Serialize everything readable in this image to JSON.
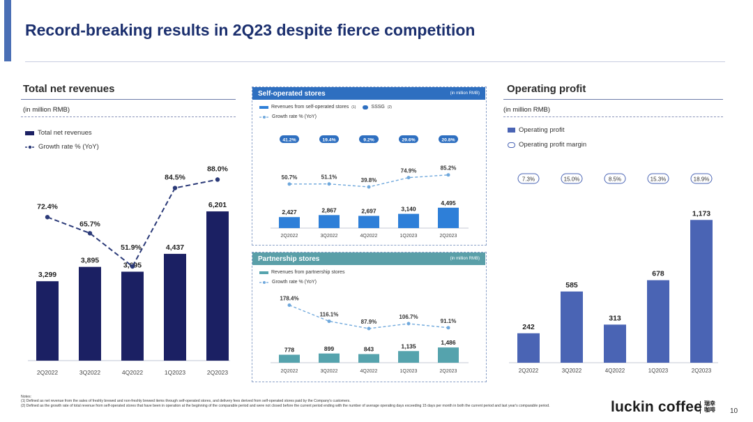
{
  "slide": {
    "title": "Record-breaking results in 2Q23 despite fierce competition",
    "page_number": "10",
    "logo_text": "luckin coffee",
    "logo_cn": "瑞幸咖啡",
    "notes_label": "Notes:",
    "notes": [
      "(1) Defined as net revenue from the sales of freshly brewed and non-freshly brewed items through self-operated stores, and delivery fees derived from self-operated stores paid by the Company's customers.",
      "(2) Defined as the growth rate of total revenue from self-operated stores that have been in operation at the beginning of the comparable period and were not closed before the current period ending with the number of average operating days exceeding 15 days per month in both the current period and last year's comparable period."
    ]
  },
  "colors": {
    "navy": "#1b2063",
    "dashed_navy": "#2b3a78",
    "self_blue": "#2e7fd8",
    "self_header": "#2e6fc0",
    "partner_teal": "#55a3ad",
    "partner_header": "#5a9fa8",
    "op_blue": "#4a64b4",
    "ssg_fill": "#2e6fc0"
  },
  "panels": {
    "left": {
      "title": "Total net revenues",
      "unit": "(in million RMB)",
      "legend_bar": "Total net revenues",
      "legend_line": "Growth rate % (YoY)"
    },
    "self": {
      "title": "Self-operated stores",
      "unit": "(in million RMB)",
      "legend_bar": "Revenues from self-operated stores",
      "legend_bar_note": "(1)",
      "legend_ssg": "SSSG",
      "legend_ssg_note": "(2)",
      "legend_line": "Growth rate % (YoY)"
    },
    "partner": {
      "title": "Partnership stores",
      "unit": "(in million RMB)",
      "legend_bar": "Revenues from partnership stores",
      "legend_line": "Growth rate % (YoY)"
    },
    "right": {
      "title": "Operating profit",
      "unit": "(in million RMB)",
      "legend_bar": "Operating profit",
      "legend_margin": "Operating profit margin"
    }
  },
  "chart_data": [
    {
      "type": "bar",
      "title": "Total net revenues",
      "categories": [
        "2Q2022",
        "3Q2022",
        "4Q2022",
        "1Q2023",
        "2Q2023"
      ],
      "series": [
        {
          "name": "Total net revenues",
          "values": [
            3299,
            3895,
            3695,
            4437,
            6201
          ]
        },
        {
          "name": "Growth rate % (YoY)",
          "type": "line",
          "values": [
            72.4,
            65.7,
            51.9,
            84.5,
            88.0
          ]
        }
      ],
      "bar_labels": [
        "3,299",
        "3,895",
        "3,695",
        "4,437",
        "6,201"
      ],
      "line_labels": [
        "72.4%",
        "65.7%",
        "51.9%",
        "84.5%",
        "88.0%"
      ]
    },
    {
      "type": "bar",
      "title": "Self-operated stores",
      "categories": [
        "2Q2022",
        "3Q2022",
        "4Q2022",
        "1Q2023",
        "2Q2023"
      ],
      "series": [
        {
          "name": "Revenues from self-operated stores",
          "values": [
            2427,
            2867,
            2697,
            3140,
            4495
          ]
        },
        {
          "name": "Growth rate % (YoY)",
          "type": "line",
          "values": [
            50.7,
            51.1,
            39.8,
            74.9,
            85.2
          ]
        },
        {
          "name": "SSSG",
          "values": [
            41.2,
            19.4,
            9.2,
            29.6,
            20.8
          ]
        }
      ],
      "bar_labels": [
        "2,427",
        "2,867",
        "2,697",
        "3,140",
        "4,495"
      ],
      "line_labels": [
        "50.7%",
        "51.1%",
        "39.8%",
        "74.9%",
        "85.2%"
      ],
      "ssg_labels": [
        "41.2%",
        "19.4%",
        "9.2%",
        "29.6%",
        "20.8%"
      ]
    },
    {
      "type": "bar",
      "title": "Partnership stores",
      "categories": [
        "2Q2022",
        "3Q2022",
        "4Q2022",
        "1Q2023",
        "2Q2023"
      ],
      "series": [
        {
          "name": "Revenues from partnership stores",
          "values": [
            778,
            899,
            843,
            1135,
            1486
          ]
        },
        {
          "name": "Growth rate % (YoY)",
          "type": "line",
          "values": [
            178.4,
            116.1,
            87.9,
            106.7,
            91.1
          ]
        }
      ],
      "bar_labels": [
        "778",
        "899",
        "843",
        "1,135",
        "1,486"
      ],
      "line_labels": [
        "178.4%",
        "116.1%",
        "87.9%",
        "106.7%",
        "91.1%"
      ]
    },
    {
      "type": "bar",
      "title": "Operating profit",
      "categories": [
        "2Q2022",
        "3Q2022",
        "4Q2022",
        "1Q2023",
        "2Q2023"
      ],
      "series": [
        {
          "name": "Operating profit",
          "values": [
            242,
            585,
            313,
            678,
            1173
          ]
        },
        {
          "name": "Operating profit margin",
          "values": [
            7.3,
            15.0,
            8.5,
            15.3,
            18.9
          ]
        }
      ],
      "bar_labels": [
        "242",
        "585",
        "313",
        "678",
        "1,173"
      ],
      "margin_labels": [
        "7.3%",
        "15.0%",
        "8.5%",
        "15.3%",
        "18.9%"
      ]
    }
  ]
}
